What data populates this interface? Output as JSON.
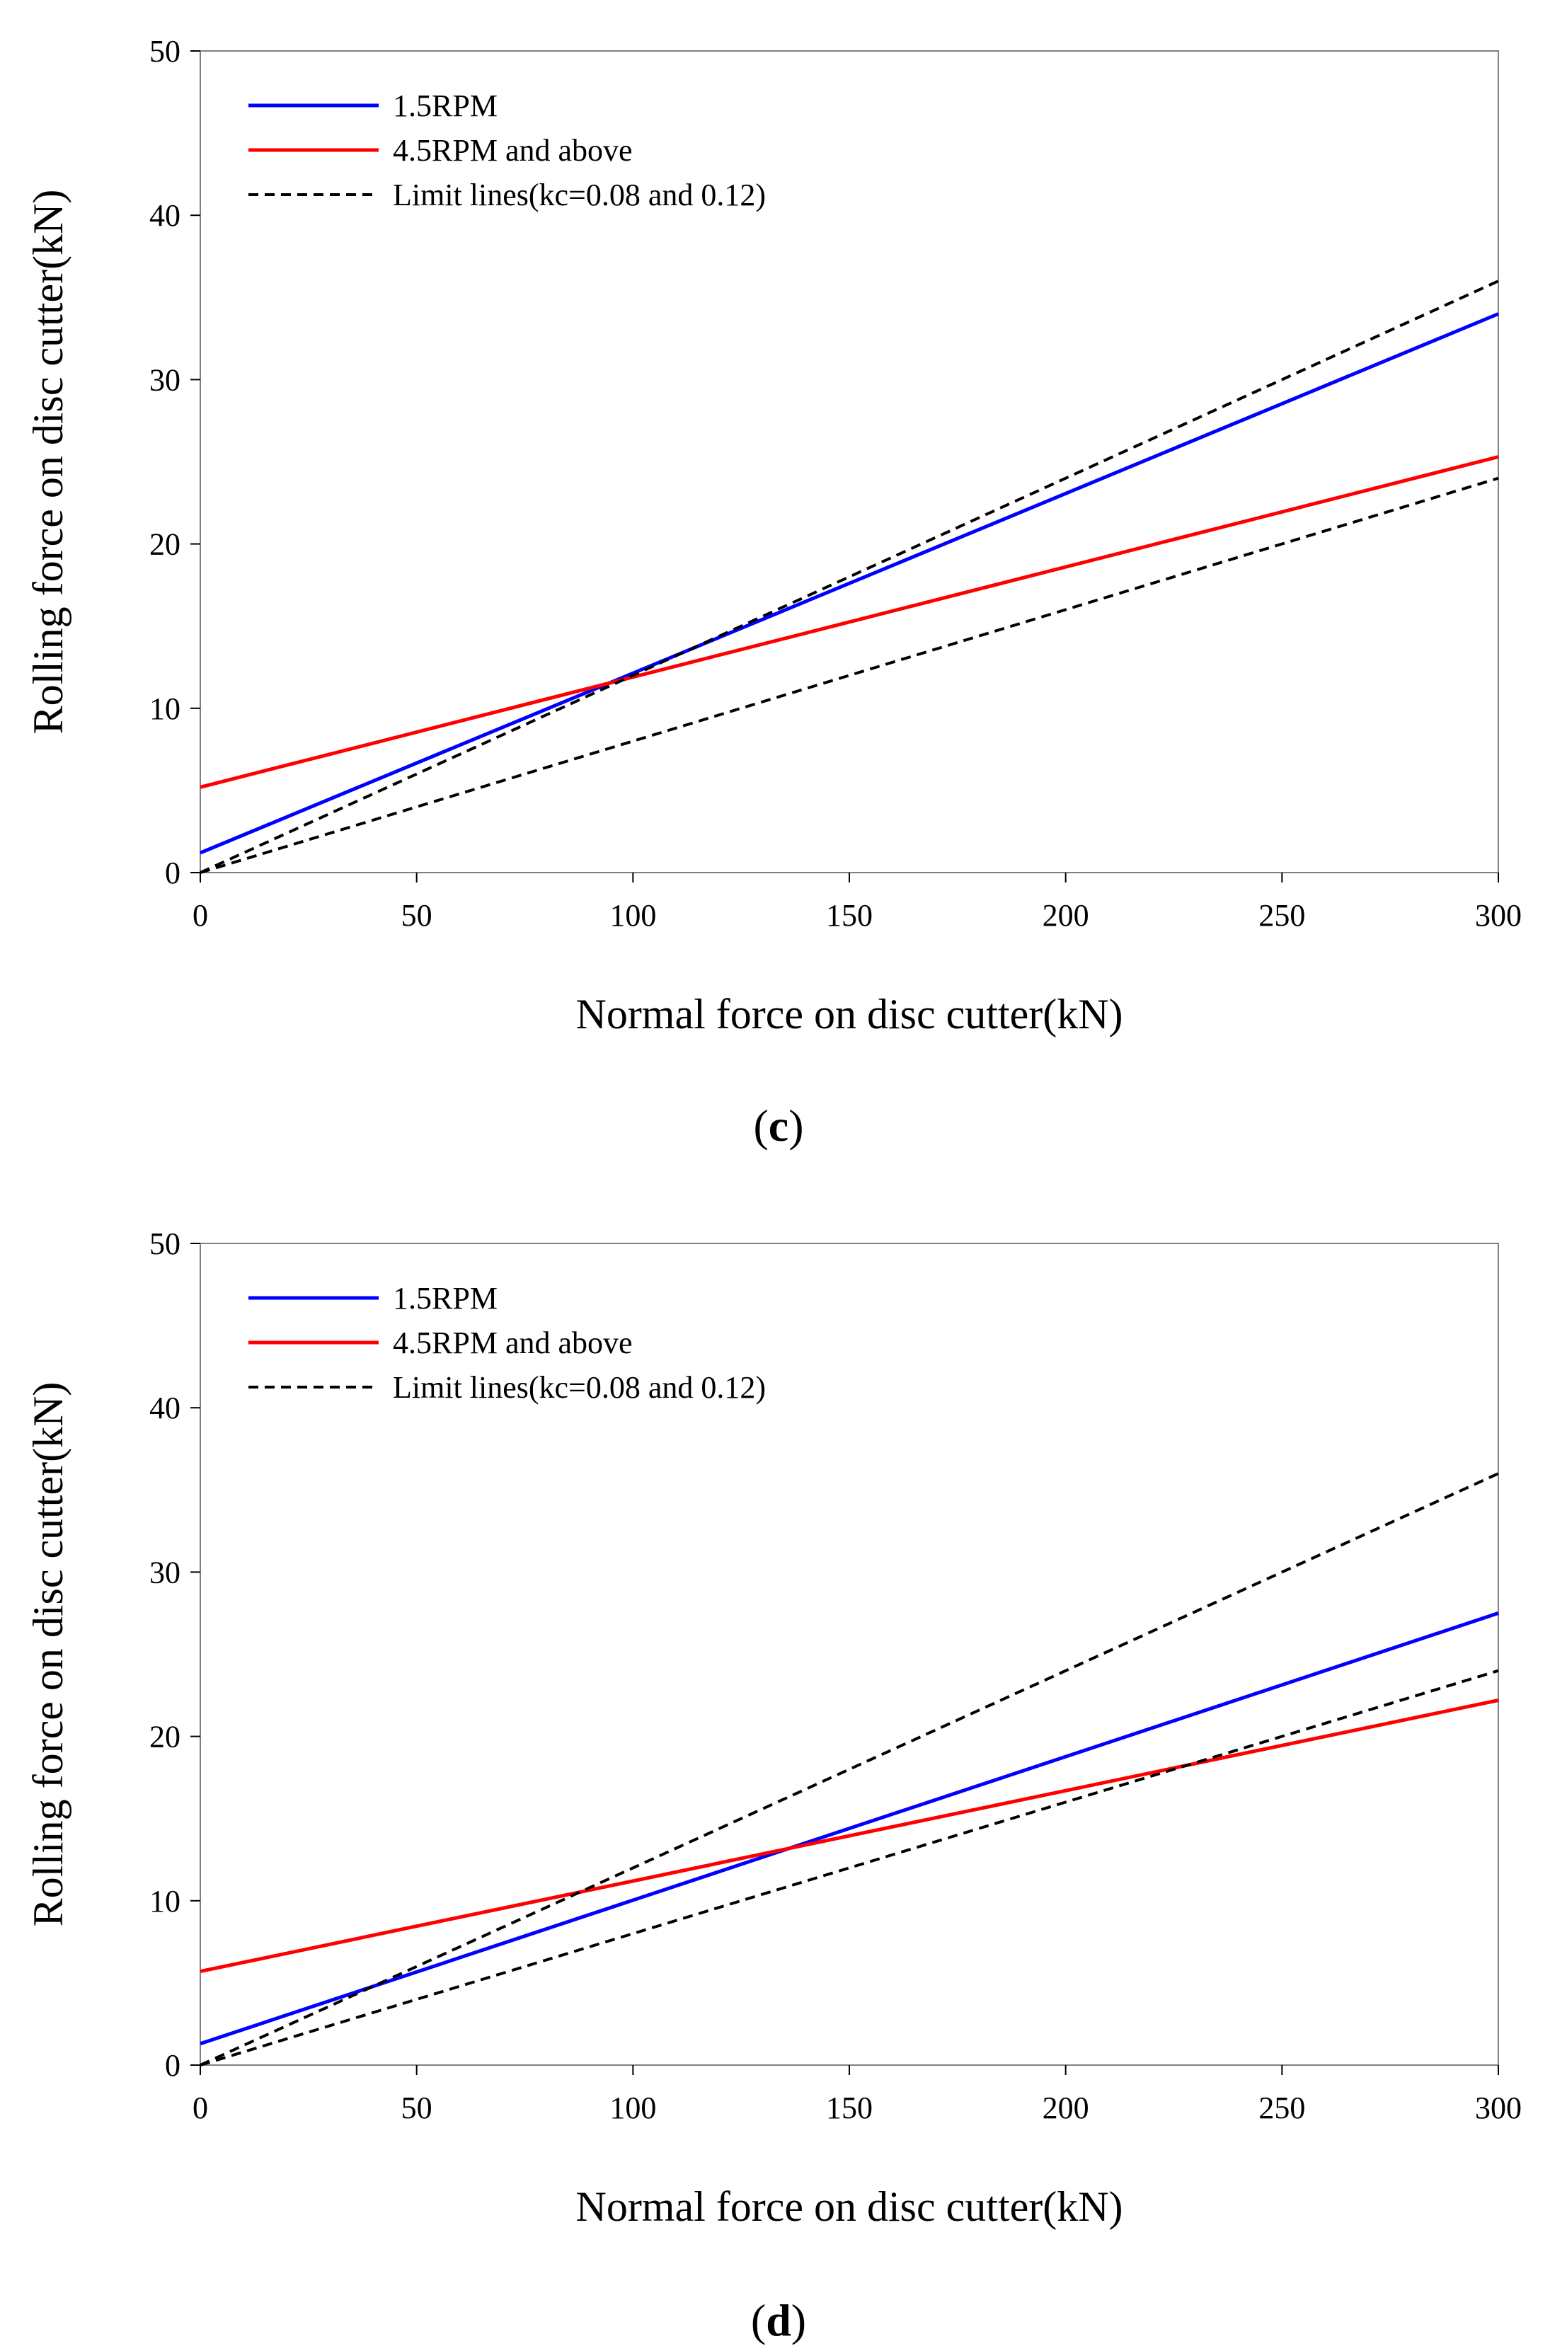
{
  "chart_data": [
    {
      "type": "line",
      "panel_label": "c",
      "xlabel": "Normal force on disc cutter(kN)",
      "ylabel": "Rolling force on disc cutter(kN)",
      "xlim": [
        0,
        300
      ],
      "ylim": [
        0,
        50
      ],
      "xticks": [
        0,
        50,
        100,
        150,
        200,
        250,
        300
      ],
      "yticks": [
        0,
        10,
        20,
        30,
        40,
        50
      ],
      "grid": false,
      "legend_position": "top-left",
      "legend_entries": [
        "1.5RPM",
        "4.5RPM and above",
        "Limit lines(kc=0.08 and 0.12)"
      ],
      "series": [
        {
          "name": "1.5RPM",
          "color": "#0000ff",
          "style": "solid",
          "x": [
            0,
            300
          ],
          "y": [
            1.2,
            34.0
          ]
        },
        {
          "name": "4.5RPM and above",
          "color": "#ff0000",
          "style": "solid",
          "x": [
            0,
            300
          ],
          "y": [
            5.2,
            25.3
          ]
        },
        {
          "name": "Limit lines(kc=0.08 and 0.12)",
          "color": "#000000",
          "style": "dashed",
          "x": [
            0,
            300
          ],
          "y": [
            0,
            36.0
          ]
        },
        {
          "name": "Limit lines(kc=0.08 and 0.12)",
          "color": "#000000",
          "style": "dashed",
          "x": [
            0,
            300
          ],
          "y": [
            0,
            24.0
          ]
        }
      ]
    },
    {
      "type": "line",
      "panel_label": "d",
      "xlabel": "Normal force on disc cutter(kN)",
      "ylabel": "Rolling force on disc cutter(kN)",
      "xlim": [
        0,
        300
      ],
      "ylim": [
        0,
        50
      ],
      "xticks": [
        0,
        50,
        100,
        150,
        200,
        250,
        300
      ],
      "yticks": [
        0,
        10,
        20,
        30,
        40,
        50
      ],
      "grid": false,
      "legend_position": "top-left",
      "legend_entries": [
        "1.5RPM",
        "4.5RPM and above",
        "Limit lines(kc=0.08 and 0.12)"
      ],
      "series": [
        {
          "name": "1.5RPM",
          "color": "#0000ff",
          "style": "solid",
          "x": [
            0,
            300
          ],
          "y": [
            1.3,
            27.5
          ]
        },
        {
          "name": "4.5RPM and above",
          "color": "#ff0000",
          "style": "solid",
          "x": [
            0,
            300
          ],
          "y": [
            5.7,
            22.2
          ]
        },
        {
          "name": "Limit lines(kc=0.08 and 0.12)",
          "color": "#000000",
          "style": "dashed",
          "x": [
            0,
            300
          ],
          "y": [
            0,
            36.0
          ]
        },
        {
          "name": "Limit lines(kc=0.08 and 0.12)",
          "color": "#000000",
          "style": "dashed",
          "x": [
            0,
            300
          ],
          "y": [
            0,
            24.0
          ]
        }
      ]
    }
  ]
}
